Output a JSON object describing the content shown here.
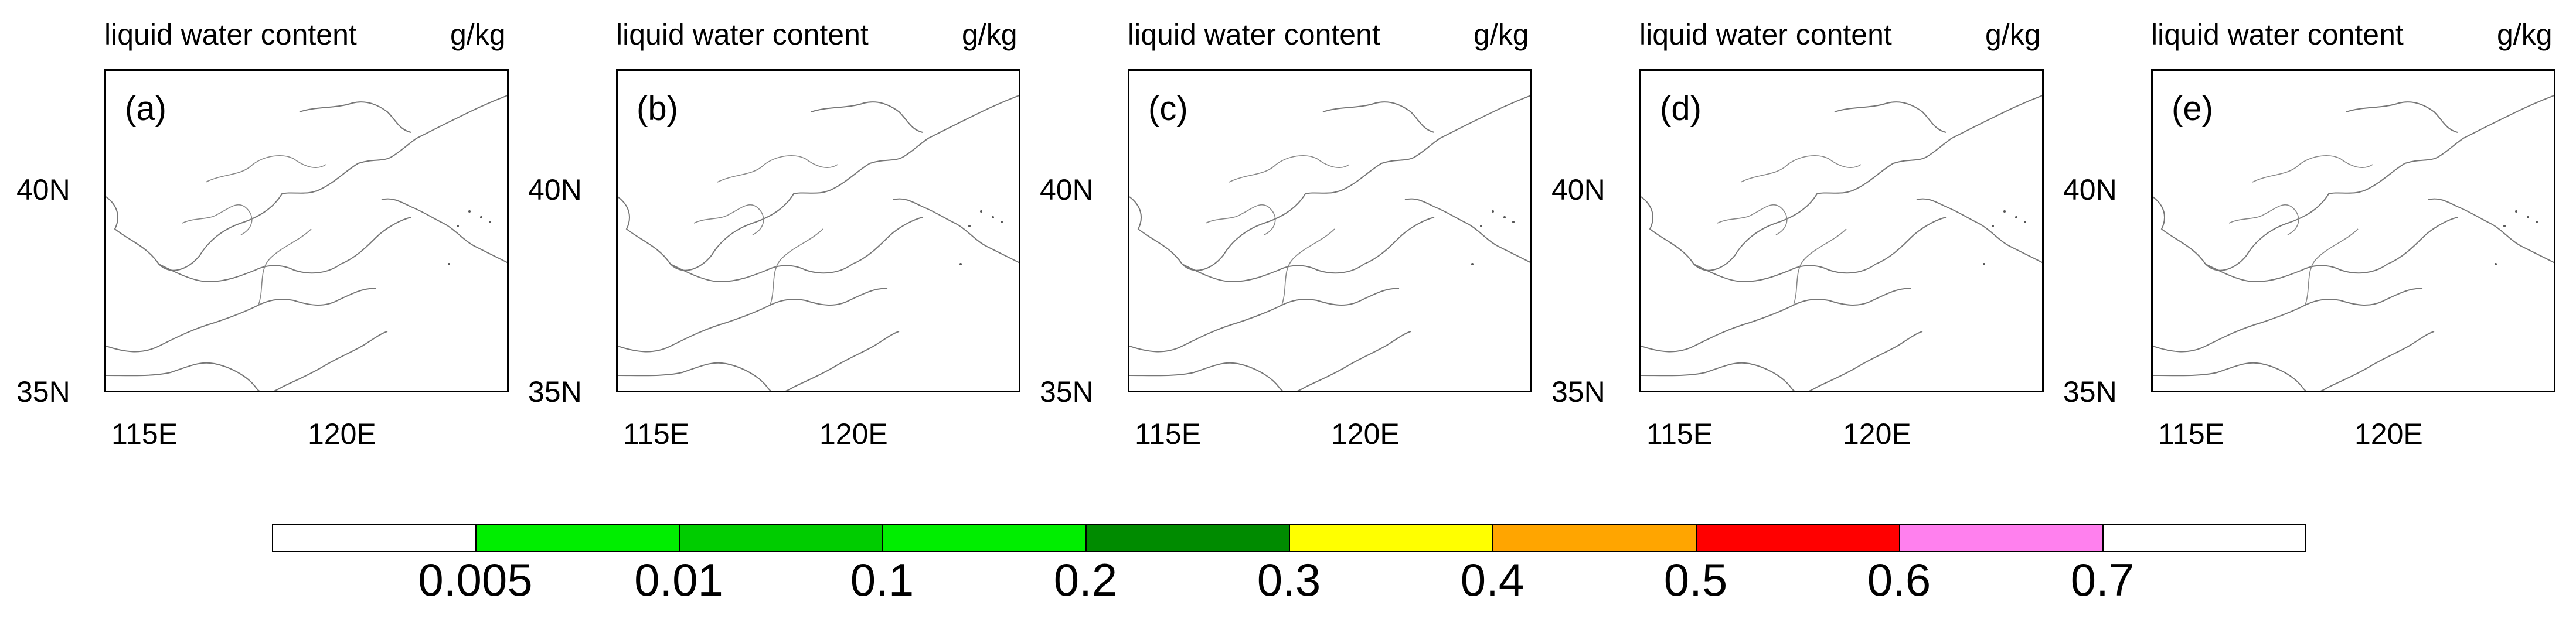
{
  "panels": [
    {
      "id": "a",
      "label": "(a)",
      "title": "liquid water content",
      "units": "g/kg"
    },
    {
      "id": "b",
      "label": "(b)",
      "title": "liquid water content",
      "units": "g/kg"
    },
    {
      "id": "c",
      "label": "(c)",
      "title": "liquid water content",
      "units": "g/kg"
    },
    {
      "id": "d",
      "label": "(d)",
      "title": "liquid water content",
      "units": "g/kg"
    },
    {
      "id": "e",
      "label": "(e)",
      "title": "liquid water content",
      "units": "g/kg"
    }
  ],
  "axes": {
    "lat_labels": [
      "40N",
      "35N"
    ],
    "lon_labels": [
      "115E",
      "120E"
    ],
    "lat_range": [
      35,
      43
    ],
    "lon_range": [
      113.8,
      124.3
    ]
  },
  "colorbar": {
    "labels": [
      "0.005",
      "0.01",
      "0.1",
      "0.2",
      "0.3",
      "0.4",
      "0.5",
      "0.6",
      "0.7"
    ],
    "colors": [
      "#ffffff",
      "#00ee00",
      "#00cc00",
      "#00ee00",
      "#008b00",
      "#ffff00",
      "#ffa500",
      "#ff0000",
      "#ff80ee",
      "#ffffff"
    ]
  }
}
